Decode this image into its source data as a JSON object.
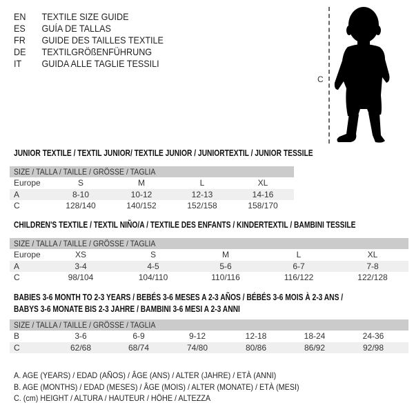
{
  "header": [
    {
      "code": "EN",
      "title": "TEXTILE SIZE GUIDE"
    },
    {
      "code": "ES",
      "title": "GUÍA DE TALLAS"
    },
    {
      "code": "FR",
      "title": "GUIDE DES TAILLES TEXTILE"
    },
    {
      "code": "DE",
      "title": "TEXTILGRÖßENFÜHRUNG"
    },
    {
      "code": "IT",
      "title": "GUIDA ALLE TAGLIE TESSILI"
    }
  ],
  "figure": {
    "measure_label": "C",
    "icon": "baby-silhouette"
  },
  "junior": {
    "title": "JUNIOR TEXTILE / TEXTIL JUNIOR/ TEXTILE JUNIOR / JUNIORTEXTIL / JUNIOR TESSILE",
    "header": "SIZE / TALLA / TAILLE / GRÖSSE / TAGLIA",
    "rows": [
      {
        "label": "Europe",
        "cells": [
          "S",
          "M",
          "L",
          "XL"
        ]
      },
      {
        "label": "A",
        "cells": [
          "8-10",
          "10-12",
          "12-13",
          "14-16"
        ]
      },
      {
        "label": "C",
        "cells": [
          "128/140",
          "140/152",
          "152/158",
          "158/170"
        ]
      }
    ]
  },
  "children": {
    "title": "CHILDREN'S TEXTILE / TEXTIL NIÑO/A / TEXTILE DES ENFANTS / KINDERTEXTIL / BAMBINI TESSILE",
    "header": "SIZE / TALLA / TAILLE / GRÖSSE / TAGLIA",
    "rows": [
      {
        "label": "Europe",
        "cells": [
          "XS",
          "S",
          "M",
          "L",
          "XL"
        ]
      },
      {
        "label": "A",
        "cells": [
          "3-4",
          "4-5",
          "5-6",
          "6-7",
          "7-8"
        ]
      },
      {
        "label": "C",
        "cells": [
          "98/104",
          "104/110",
          "110/116",
          "116/122",
          "122/128"
        ]
      }
    ]
  },
  "babies": {
    "title_line1": "BABIES 3-6 MONTH TO 2-3 YEARS / BEBÉS 3-6 MESES A 2-3 AÑOS / BÉBÉS 3-6 MOIS À 2-3 ANS /",
    "title_line2": "BABYS 3-6 MONATE BIS 2-3 JAHRE / BAMBINI 3-6 MESI A 2-3 ANNI",
    "header": "SIZE / TALLA / TAILLE / GRÖSSE / TAGLIA",
    "rows": [
      {
        "label": "B",
        "cells": [
          "3-6",
          "6-9",
          "9-12",
          "12-18",
          "18-24",
          "24-36"
        ]
      },
      {
        "label": "C",
        "cells": [
          "62/68",
          "68/74",
          "74/80",
          "80/86",
          "86/92",
          "92/98"
        ]
      }
    ]
  },
  "legend": [
    "A. AGE (YEARS) / EDAD (AÑOS) / ÂGE (ANS) / ALTER (JAHRE) / ETÀ (ANNI)",
    "B. AGE (MONTHS) / EDAD (MESES) / ÂGE (MOIS) / ALTER (MONATE) / ETÀ (MESI)",
    "C. (cm) HEIGHT / ALTURA / HAUTEUR / HÖHE / ALTEZZA"
  ]
}
